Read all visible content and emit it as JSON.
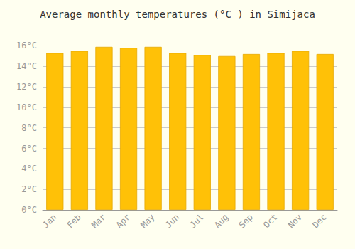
{
  "chart_data": {
    "type": "bar",
    "title": "Average monthly temperatures (°C ) in Simijaca",
    "categories": [
      "Jan",
      "Feb",
      "Mar",
      "Apr",
      "May",
      "Jun",
      "Jul",
      "Aug",
      "Sep",
      "Oct",
      "Nov",
      "Dec"
    ],
    "values": [
      15.3,
      15.5,
      15.9,
      15.8,
      15.9,
      15.3,
      15.1,
      15.0,
      15.2,
      15.3,
      15.5,
      15.2
    ],
    "color": "#FFC107",
    "ylim": [
      0,
      17
    ],
    "yticks": [
      {
        "value": 0,
        "label": "0°C"
      },
      {
        "value": 2,
        "label": "2°C"
      },
      {
        "value": 4,
        "label": "4°C"
      },
      {
        "value": 6,
        "label": "6°C"
      },
      {
        "value": 8,
        "label": "8°C"
      },
      {
        "value": 10,
        "label": "10°C"
      },
      {
        "value": 12,
        "label": "12°C"
      },
      {
        "value": 14,
        "label": "14°C"
      },
      {
        "value": 16,
        "label": "16°C"
      }
    ],
    "grid": true
  }
}
